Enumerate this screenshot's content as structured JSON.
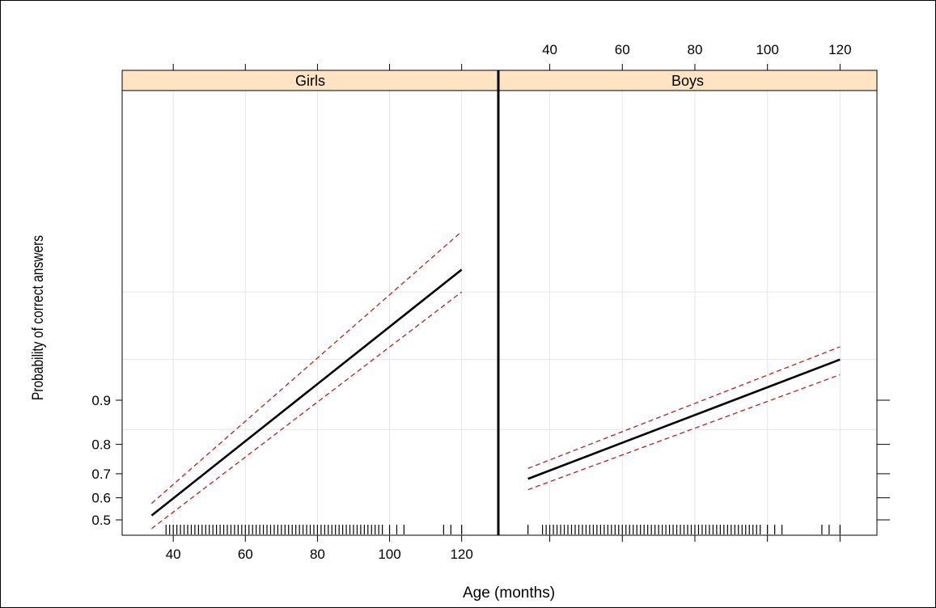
{
  "chart_data": {
    "type": "line",
    "xlabel": "Age (months)",
    "ylabel": "Probability of correct answers",
    "x_ticks": [
      40,
      60,
      80,
      100,
      120
    ],
    "y_ticks": [
      0.5,
      0.6,
      0.7,
      0.8,
      0.9
    ],
    "xlim": [
      30,
      126
    ],
    "grid": true,
    "panels": [
      {
        "name": "Girls",
        "fit": {
          "x": [
            34,
            120
          ],
          "y": [
            0.52,
            0.99
          ]
        },
        "lower": {
          "x": [
            34,
            120
          ],
          "y": [
            0.46,
            0.985
          ]
        },
        "upper": {
          "x": [
            34,
            120
          ],
          "y": [
            0.575,
            0.995
          ]
        },
        "rug": [
          38,
          39,
          40,
          41,
          42,
          43,
          44,
          45,
          46,
          47,
          48,
          49,
          50,
          51,
          52,
          53,
          54,
          55,
          56,
          57,
          58,
          59,
          60,
          61,
          62,
          63,
          64,
          65,
          66,
          67,
          68,
          69,
          70,
          71,
          72,
          73,
          74,
          75,
          76,
          77,
          78,
          79,
          80,
          81,
          82,
          83,
          84,
          85,
          86,
          87,
          88,
          89,
          90,
          91,
          92,
          93,
          94,
          95,
          96,
          97,
          98,
          100,
          102,
          104,
          115,
          117,
          120
        ]
      },
      {
        "name": "Boys",
        "fit": {
          "x": [
            34,
            120
          ],
          "y": [
            0.68,
            0.95
          ]
        },
        "lower": {
          "x": [
            34,
            120
          ],
          "y": [
            0.635,
            0.935
          ]
        },
        "upper": {
          "x": [
            34,
            120
          ],
          "y": [
            0.72,
            0.96
          ]
        },
        "rug": [
          34,
          38,
          39,
          40,
          41,
          42,
          43,
          44,
          45,
          46,
          47,
          48,
          49,
          50,
          51,
          52,
          53,
          54,
          55,
          56,
          57,
          58,
          59,
          60,
          61,
          62,
          63,
          64,
          65,
          66,
          67,
          68,
          69,
          70,
          71,
          72,
          73,
          74,
          75,
          76,
          77,
          78,
          79,
          80,
          81,
          82,
          83,
          84,
          85,
          86,
          87,
          88,
          89,
          90,
          91,
          92,
          93,
          94,
          95,
          96,
          97,
          98,
          100,
          102,
          104,
          115,
          117,
          120
        ]
      }
    ],
    "colors": {
      "fit": "#000000",
      "ci": "#b22222",
      "strip": "#ffe4c4",
      "grid": "#e6e6e6"
    }
  }
}
